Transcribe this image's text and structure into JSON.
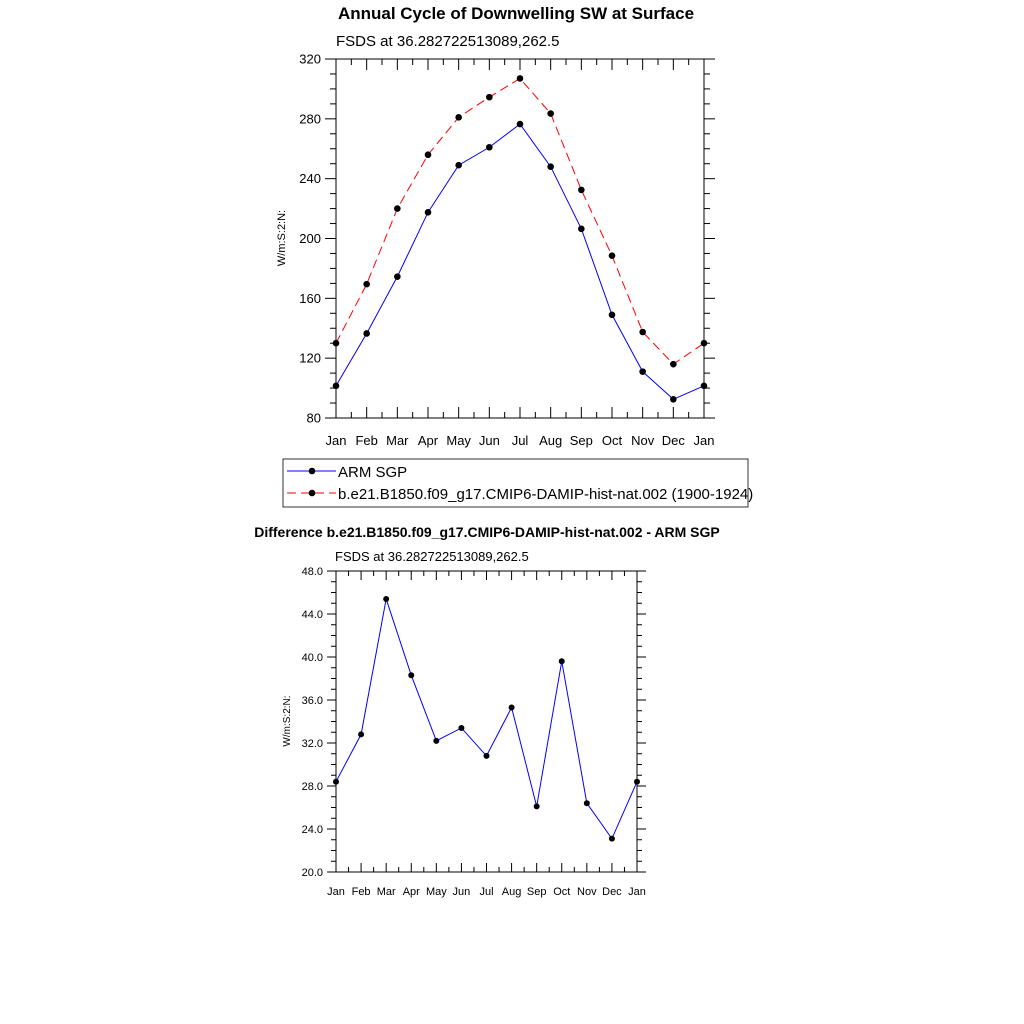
{
  "chart_data": [
    {
      "type": "line",
      "title": "Annual Cycle of Downwelling SW at Surface",
      "subtitle": "FSDS at 36.282722513089,262.5",
      "ylabel": "W/m:S:2:N:",
      "xlabel": "",
      "categories": [
        "Jan",
        "Feb",
        "Mar",
        "Apr",
        "May",
        "Jun",
        "Jul",
        "Aug",
        "Sep",
        "Oct",
        "Nov",
        "Dec",
        "Jan"
      ],
      "ylim": [
        80,
        320
      ],
      "yticks": [
        "80",
        "120",
        "160",
        "200",
        "240",
        "280",
        "320"
      ],
      "series": [
        {
          "name": "ARM SGP",
          "color": "#0000ff",
          "dash": "solid",
          "values": [
            101.5,
            136.5,
            174.5,
            217.5,
            249,
            261,
            276.5,
            248,
            206.5,
            149,
            111,
            92.5,
            101.5
          ]
        },
        {
          "name": "b.e21.B1850.f09_g17.CMIP6-DAMIP-hist-nat.002 (1900-1924)",
          "color": "#ff0000",
          "dash": "dashed",
          "values": [
            130,
            169.5,
            220,
            256,
            281,
            294.5,
            307,
            283.5,
            232.5,
            188.5,
            137.5,
            116,
            130
          ]
        }
      ],
      "legend": "bottom"
    },
    {
      "type": "line",
      "title": "Difference b.e21.B1850.f09_g17.CMIP6-DAMIP-hist-nat.002 - ARM SGP",
      "subtitle": "FSDS at 36.282722513089,262.5",
      "ylabel": "W/m:S:2:N:",
      "xlabel": "",
      "categories": [
        "Jan",
        "Feb",
        "Mar",
        "Apr",
        "May",
        "Jun",
        "Jul",
        "Aug",
        "Sep",
        "Oct",
        "Nov",
        "Dec",
        "Jan"
      ],
      "ylim": [
        20,
        48
      ],
      "yticks": [
        "20.0",
        "24.0",
        "28.0",
        "32.0",
        "36.0",
        "40.0",
        "44.0",
        "48.0"
      ],
      "series": [
        {
          "color": "#0000ff",
          "dash": "solid",
          "values": [
            28.4,
            32.8,
            45.4,
            38.3,
            32.2,
            33.4,
            30.8,
            35.3,
            26.1,
            39.6,
            26.4,
            23.1,
            28.4
          ]
        }
      ]
    }
  ]
}
